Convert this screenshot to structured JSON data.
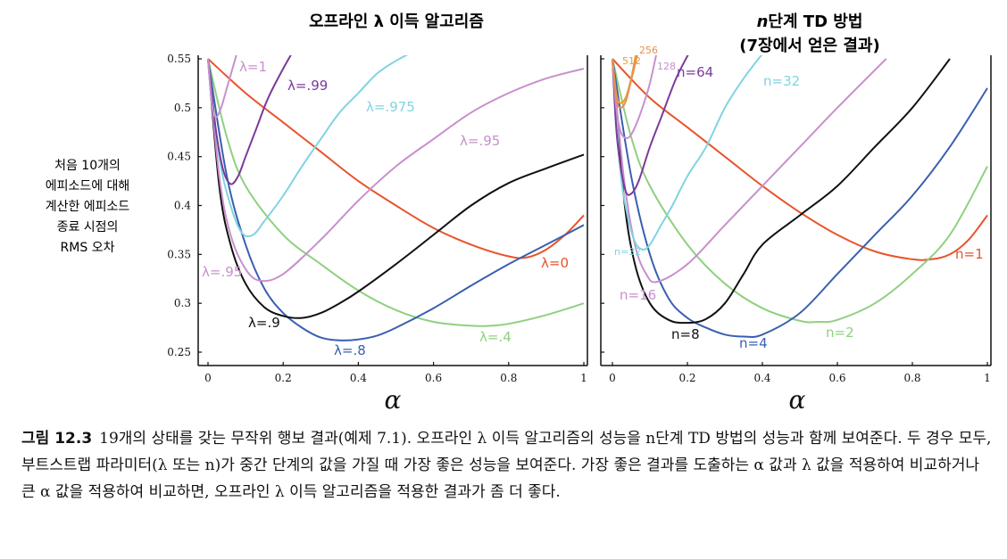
{
  "chart_data": [
    {
      "type": "line",
      "title": "오프라인 λ 이득 알고리즘",
      "ylabel": [
        "처음 10개의",
        "에피소드에 대해",
        "계산한 에피소드",
        "종료 시점의",
        "RMS 오차"
      ],
      "xlabel": "α",
      "xlim": [
        0,
        1
      ],
      "ylim": [
        0.25,
        0.55
      ],
      "xticks": [
        "0",
        "0.2",
        "0.4",
        "0.6",
        "0.8",
        "1"
      ],
      "yticks": [
        "0.25",
        "0.3",
        "0.35",
        "0.4",
        "0.45",
        "0.5",
        "0.55"
      ],
      "series": [
        {
          "name": "λ=0",
          "color": "#e8542a",
          "x": [
            0,
            0.1,
            0.2,
            0.3,
            0.4,
            0.5,
            0.6,
            0.7,
            0.8,
            0.85,
            0.9,
            0.95,
            1.0
          ],
          "y": [
            0.55,
            0.515,
            0.485,
            0.455,
            0.425,
            0.4,
            0.377,
            0.36,
            0.348,
            0.347,
            0.355,
            0.37,
            0.39
          ]
        },
        {
          "name": "λ=.4",
          "color": "#8fd080",
          "x": [
            0,
            0.05,
            0.1,
            0.2,
            0.3,
            0.4,
            0.5,
            0.6,
            0.7,
            0.75,
            0.8,
            0.9,
            1.0
          ],
          "y": [
            0.55,
            0.47,
            0.42,
            0.37,
            0.34,
            0.313,
            0.293,
            0.281,
            0.277,
            0.277,
            0.279,
            0.288,
            0.3
          ]
        },
        {
          "name": "λ=.8",
          "color": "#3a5fb0",
          "x": [
            0,
            0.05,
            0.1,
            0.15,
            0.2,
            0.25,
            0.3,
            0.35,
            0.4,
            0.45,
            0.5,
            0.6,
            0.7,
            0.8,
            0.9,
            1.0
          ],
          "y": [
            0.55,
            0.43,
            0.36,
            0.315,
            0.29,
            0.275,
            0.265,
            0.262,
            0.263,
            0.267,
            0.275,
            0.295,
            0.318,
            0.34,
            0.36,
            0.38
          ]
        },
        {
          "name": "λ=.9",
          "color": "#111111",
          "x": [
            0,
            0.03,
            0.06,
            0.1,
            0.15,
            0.2,
            0.25,
            0.3,
            0.35,
            0.4,
            0.5,
            0.6,
            0.7,
            0.8,
            0.9,
            1.0
          ],
          "y": [
            0.55,
            0.42,
            0.36,
            0.32,
            0.296,
            0.287,
            0.285,
            0.29,
            0.3,
            0.312,
            0.34,
            0.37,
            0.4,
            0.423,
            0.438,
            0.452
          ]
        },
        {
          "name": "λ=.95",
          "color": "#c890cc",
          "x": [
            0,
            0.03,
            0.06,
            0.1,
            0.14,
            0.2,
            0.3,
            0.4,
            0.5,
            0.6,
            0.7,
            0.8,
            0.9,
            1.0
          ],
          "y": [
            0.55,
            0.43,
            0.37,
            0.335,
            0.323,
            0.33,
            0.365,
            0.405,
            0.44,
            0.468,
            0.495,
            0.515,
            0.53,
            0.54
          ]
        },
        {
          "name": "λ=.975",
          "color": "#80d4e0",
          "x": [
            0,
            0.03,
            0.06,
            0.09,
            0.12,
            0.15,
            0.2,
            0.25,
            0.3,
            0.35,
            0.4,
            0.45,
            0.5,
            0.56
          ],
          "y": [
            0.55,
            0.45,
            0.4,
            0.372,
            0.37,
            0.384,
            0.41,
            0.44,
            0.468,
            0.495,
            0.515,
            0.535,
            0.548,
            0.56
          ]
        },
        {
          "name": "λ=.99",
          "color": "#7b3a9a",
          "x": [
            0,
            0.02,
            0.04,
            0.06,
            0.08,
            0.1,
            0.13,
            0.16,
            0.2,
            0.23
          ],
          "y": [
            0.55,
            0.48,
            0.437,
            0.422,
            0.43,
            0.45,
            0.48,
            0.51,
            0.54,
            0.56
          ]
        },
        {
          "name": "λ=1",
          "color": "#c890cc",
          "x": [
            0,
            0.01,
            0.02,
            0.035,
            0.05,
            0.065,
            0.08
          ],
          "y": [
            0.55,
            0.505,
            0.49,
            0.5,
            0.52,
            0.54,
            0.56
          ]
        }
      ],
      "labels": [
        "λ=1",
        "λ=.99",
        "λ=.975",
        "λ=.95",
        "λ=0",
        "λ=.95",
        "λ=.9",
        "λ=.8",
        "λ=.4"
      ]
    },
    {
      "type": "line",
      "title": "n단계 TD 방법",
      "subtitle": "(7장에서 얻은 결과)",
      "xlabel": "α",
      "xlim": [
        0,
        1
      ],
      "ylim": [
        0.25,
        0.55
      ],
      "xticks": [
        "0",
        "0.2",
        "0.4",
        "0.6",
        "0.8",
        "1"
      ],
      "series": [
        {
          "name": "n=1",
          "color": "#e8542a",
          "x": [
            0,
            0.1,
            0.2,
            0.3,
            0.4,
            0.5,
            0.6,
            0.7,
            0.8,
            0.85,
            0.9,
            0.95,
            1.0
          ],
          "y": [
            0.55,
            0.51,
            0.48,
            0.45,
            0.42,
            0.393,
            0.37,
            0.353,
            0.345,
            0.345,
            0.35,
            0.365,
            0.39
          ]
        },
        {
          "name": "n=2",
          "color": "#8fd080",
          "x": [
            0,
            0.05,
            0.1,
            0.2,
            0.3,
            0.4,
            0.5,
            0.55,
            0.6,
            0.7,
            0.8,
            0.9,
            1.0
          ],
          "y": [
            0.55,
            0.47,
            0.42,
            0.36,
            0.32,
            0.295,
            0.282,
            0.281,
            0.283,
            0.3,
            0.33,
            0.37,
            0.44
          ]
        },
        {
          "name": "n=4",
          "color": "#3a5fb0",
          "x": [
            0,
            0.05,
            0.1,
            0.15,
            0.2,
            0.25,
            0.3,
            0.35,
            0.4,
            0.5,
            0.6,
            0.7,
            0.8,
            0.9,
            1.0
          ],
          "y": [
            0.55,
            0.43,
            0.35,
            0.305,
            0.285,
            0.275,
            0.268,
            0.266,
            0.268,
            0.29,
            0.33,
            0.37,
            0.41,
            0.46,
            0.52
          ]
        },
        {
          "name": "n=8",
          "color": "#111111",
          "x": [
            0,
            0.03,
            0.06,
            0.1,
            0.15,
            0.2,
            0.25,
            0.3,
            0.35,
            0.4,
            0.5,
            0.6,
            0.7,
            0.8,
            0.9
          ],
          "y": [
            0.55,
            0.41,
            0.34,
            0.3,
            0.283,
            0.28,
            0.284,
            0.3,
            0.33,
            0.36,
            0.39,
            0.42,
            0.46,
            0.5,
            0.55
          ]
        },
        {
          "name": "n=16",
          "color": "#c890cc",
          "x": [
            0,
            0.03,
            0.06,
            0.09,
            0.12,
            0.2,
            0.3,
            0.4,
            0.5,
            0.6,
            0.73
          ],
          "y": [
            0.55,
            0.43,
            0.36,
            0.33,
            0.322,
            0.34,
            0.38,
            0.42,
            0.46,
            0.5,
            0.55
          ]
        },
        {
          "name": "n=32",
          "color": "#80d4e0",
          "x": [
            0,
            0.02,
            0.04,
            0.06,
            0.08,
            0.1,
            0.13,
            0.16,
            0.2,
            0.25,
            0.3,
            0.35,
            0.41
          ],
          "y": [
            0.55,
            0.44,
            0.39,
            0.363,
            0.355,
            0.36,
            0.38,
            0.4,
            0.43,
            0.46,
            0.5,
            0.53,
            0.56
          ]
        },
        {
          "name": "n=64",
          "color": "#7b3a9a",
          "x": [
            0,
            0.01,
            0.02,
            0.035,
            0.05,
            0.07,
            0.1,
            0.13,
            0.17,
            0.21
          ],
          "y": [
            0.55,
            0.48,
            0.445,
            0.415,
            0.412,
            0.425,
            0.46,
            0.49,
            0.53,
            0.56
          ]
        },
        {
          "name": "128",
          "color": "#c890cc",
          "x": [
            0,
            0.01,
            0.02,
            0.03,
            0.045,
            0.06,
            0.08,
            0.1,
            0.12
          ],
          "y": [
            0.55,
            0.5,
            0.478,
            0.47,
            0.47,
            0.48,
            0.5,
            0.525,
            0.56
          ]
        },
        {
          "name": "512",
          "color": "#e8a030",
          "x": [
            0,
            0.01,
            0.02,
            0.035,
            0.05,
            0.065
          ],
          "y": [
            0.55,
            0.515,
            0.505,
            0.51,
            0.53,
            0.56
          ]
        },
        {
          "name": "256",
          "color": "#e89050",
          "x": [
            0,
            0.01,
            0.02,
            0.035,
            0.05,
            0.07
          ],
          "y": [
            0.55,
            0.51,
            0.5,
            0.506,
            0.528,
            0.56
          ]
        }
      ],
      "labels": [
        "512",
        "256",
        "128",
        "n=64",
        "n=32",
        "n=32",
        "n=16",
        "n=8",
        "n=4",
        "n=2",
        "n=1"
      ]
    }
  ],
  "caption": {
    "figure_label": "그림 12.3",
    "text": "19개의 상태를 갖는 무작위 행보 결과(예제 7.1). 오프라인 λ 이득 알고리즘의 성능을 n단계 TD 방법의 성능과 함께 보여준다. 두 경우 모두, 부트스트랩 파라미터(λ 또는 n)가 중간 단계의 값을 가질 때 가장 좋은 성능을 보여준다. 가장 좋은 결과를 도출하는 α 값과 λ 값을 적용하여 비교하거나 큰 α 값을 적용하여 비교하면, 오프라인 λ 이득 알고리즘을 적용한 결과가 좀 더 좋다."
  }
}
